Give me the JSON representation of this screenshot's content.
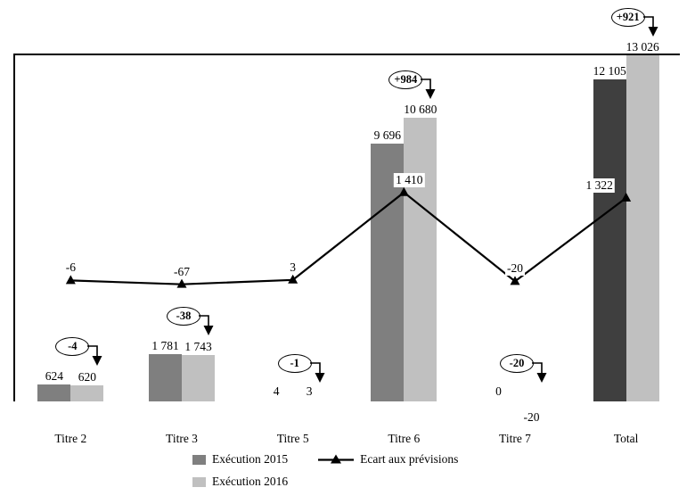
{
  "chart_data": {
    "type": "bar",
    "title": "",
    "categories": [
      "Titre 2",
      "Titre 3",
      "Titre 5",
      "Titre 6",
      "Titre 7",
      "Total"
    ],
    "series": [
      {
        "name": "Exécution 2015",
        "type": "bar",
        "values": [
          624,
          1781,
          4,
          9696,
          0,
          12105
        ],
        "labels": [
          "624",
          "1 781",
          "4",
          "9 696",
          "0",
          "12 105"
        ],
        "color": "#7f7f7f",
        "total_color": "#3f3f3f"
      },
      {
        "name": "Exécution 2016",
        "type": "bar",
        "values": [
          620,
          1743,
          3,
          10680,
          -20,
          13026
        ],
        "labels": [
          "620",
          "1 743",
          "3",
          "10 680",
          "-20",
          "13 026"
        ],
        "color": "#c0c0c0"
      },
      {
        "name": "Ecart aux prévisions",
        "type": "line",
        "values": [
          -6,
          -67,
          3,
          1410,
          -20,
          1322
        ],
        "labels": [
          "-6",
          "-67",
          "3",
          "1 410",
          "-20",
          "1 322"
        ],
        "color": "#000000"
      }
    ],
    "annotations": [
      {
        "category": "Titre 2",
        "label": "-4"
      },
      {
        "category": "Titre 3",
        "label": "-38"
      },
      {
        "category": "Titre 5",
        "label": "-1"
      },
      {
        "category": "Titre 6",
        "label": "+984"
      },
      {
        "category": "Titre 7",
        "label": "-20"
      },
      {
        "category": "Total",
        "label": "+921"
      }
    ],
    "axes": {
      "primary_ylim": [
        0,
        13100
      ],
      "grid": "off",
      "line_on_secondary_axis": true
    },
    "legend": {
      "position": "bottom"
    }
  }
}
